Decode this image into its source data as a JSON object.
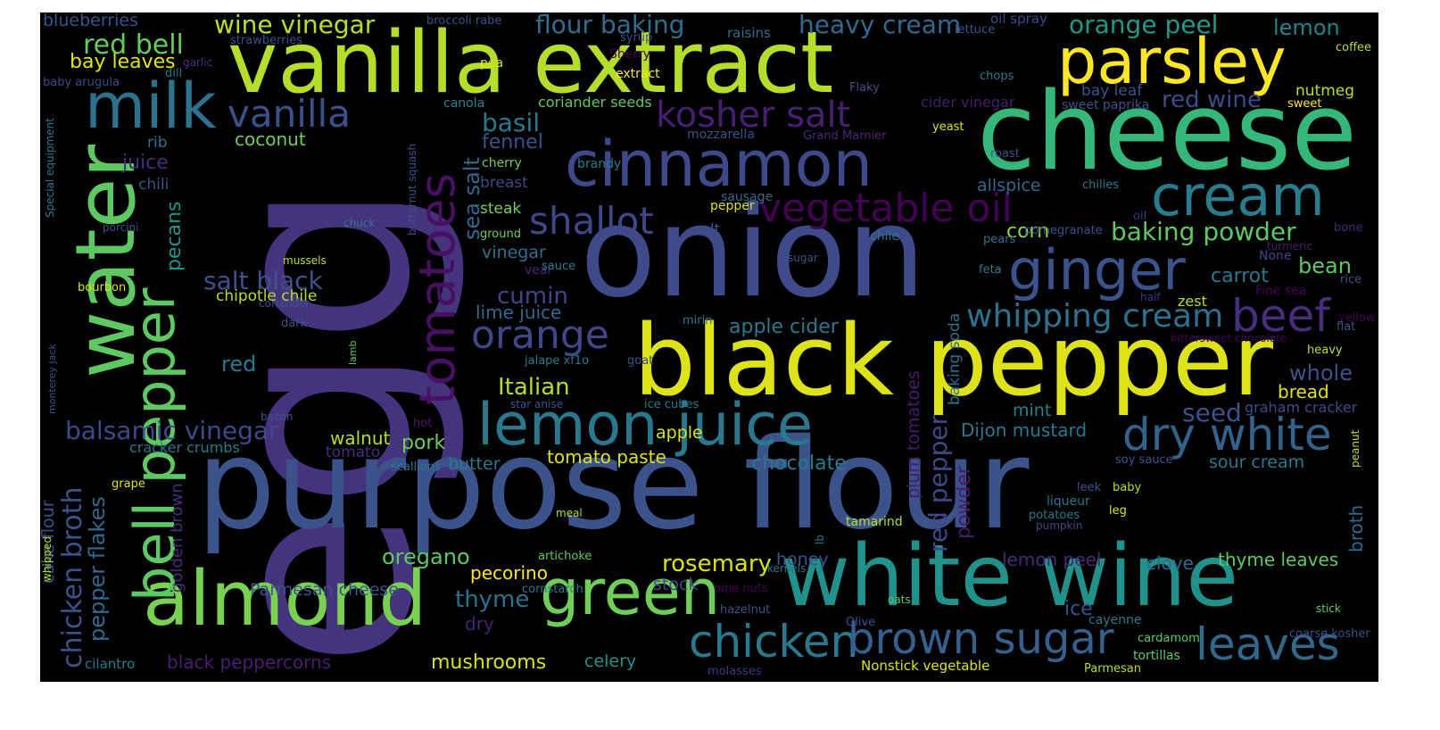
{
  "words": [
    {
      "text": "egg",
      "color": "#46337e"
    },
    {
      "text": "purpose flour",
      "color": "#3b528b"
    },
    {
      "text": "vanilla extract",
      "color": "#b5de2b"
    },
    {
      "text": "onion",
      "color": "#3e4a89"
    },
    {
      "text": "cheese",
      "color": "#35b779"
    },
    {
      "text": "black pepper",
      "color": "#dde318"
    },
    {
      "text": "white wine",
      "color": "#21918c"
    },
    {
      "text": "water",
      "color": "#5ec962"
    },
    {
      "text": "cinnamon",
      "color": "#3e4989"
    },
    {
      "text": "parsley",
      "color": "#fde725"
    },
    {
      "text": "almond",
      "color": "#7ad151"
    },
    {
      "text": "lemon juice",
      "color": "#2a788e"
    },
    {
      "text": "milk",
      "color": "#2c728e"
    },
    {
      "text": "green",
      "color": "#6ece58"
    },
    {
      "text": "bell pepper",
      "color": "#5ec962"
    },
    {
      "text": "tomatoes",
      "color": "#471063"
    },
    {
      "text": "cream",
      "color": "#287c8e"
    },
    {
      "text": "ginger",
      "color": "#3b528b"
    },
    {
      "text": "vanilla",
      "color": "#3b518b"
    },
    {
      "text": "kosher salt",
      "color": "#481f70"
    },
    {
      "text": "vegetable oil",
      "color": "#440154"
    },
    {
      "text": "shallot",
      "color": "#3f4788"
    },
    {
      "text": "chicken",
      "color": "#2a788e"
    },
    {
      "text": "brown sugar",
      "color": "#34608d"
    },
    {
      "text": "leaves",
      "color": "#31688e"
    },
    {
      "text": "dry white",
      "color": "#33638d"
    },
    {
      "text": "beef",
      "color": "#472d7b"
    },
    {
      "text": "orange",
      "color": "#3f4788"
    },
    {
      "text": "whipping cream",
      "color": "#2c718e"
    },
    {
      "text": "red bell",
      "color": "#67cc5c"
    },
    {
      "text": "wine vinegar",
      "color": "#b8de29"
    },
    {
      "text": "flour baking",
      "color": "#2e6e8e"
    },
    {
      "text": "heavy cream",
      "color": "#306a8e"
    },
    {
      "text": "orange peel",
      "color": "#1f9a8a"
    },
    {
      "text": "lemon",
      "color": "#25838e"
    },
    {
      "text": "red wine",
      "color": "#3e4a89"
    },
    {
      "text": "bay leaves",
      "color": "#dfe318"
    },
    {
      "text": "blueberries",
      "color": "#3b528b"
    },
    {
      "text": "basil",
      "color": "#2a788e"
    },
    {
      "text": "sea salt",
      "color": "#31688e"
    },
    {
      "text": "fennel",
      "color": "#3b528b"
    },
    {
      "text": "coconut",
      "color": "#6ece58"
    },
    {
      "text": "juice",
      "color": "#472c7a"
    },
    {
      "text": "chili",
      "color": "#3b528b"
    },
    {
      "text": "rib",
      "color": "#2c728e"
    },
    {
      "text": "pecans",
      "color": "#1f968b"
    },
    {
      "text": "baking powder",
      "color": "#5ec962"
    },
    {
      "text": "corn",
      "color": "#8fd744"
    },
    {
      "text": "allspice",
      "color": "#31688e"
    },
    {
      "text": "salt black",
      "color": "#3b528b"
    },
    {
      "text": "cumin",
      "color": "#414487"
    },
    {
      "text": "lime juice",
      "color": "#31688e"
    },
    {
      "text": "vinegar",
      "color": "#2c718e"
    },
    {
      "text": "steak",
      "color": "#7ad151"
    },
    {
      "text": "breast",
      "color": "#3f4788"
    },
    {
      "text": "Italian",
      "color": "#b5de2b"
    },
    {
      "text": "balsamic vinegar",
      "color": "#3e4989"
    },
    {
      "text": "chicken broth",
      "color": "#3b528b"
    },
    {
      "text": "pepper flakes",
      "color": "#31688e"
    },
    {
      "text": "walnut",
      "color": "#b8de29"
    },
    {
      "text": "pork",
      "color": "#6ece58"
    },
    {
      "text": "red",
      "color": "#2a788e"
    },
    {
      "text": "apple cider",
      "color": "#2a788e"
    },
    {
      "text": "carrot",
      "color": "#2a788e"
    },
    {
      "text": "bean",
      "color": "#5ec962"
    },
    {
      "text": "whole",
      "color": "#3b528b"
    },
    {
      "text": "bread",
      "color": "#dde318"
    },
    {
      "text": "seed",
      "color": "#3b528b"
    },
    {
      "text": "mint",
      "color": "#26828e"
    },
    {
      "text": "Dijon mustard",
      "color": "#2a788e"
    },
    {
      "text": "chocolate",
      "color": "#2a788e"
    },
    {
      "text": "tomato paste",
      "color": "#dde318"
    },
    {
      "text": "apple",
      "color": "#d8e219"
    },
    {
      "text": "butter",
      "color": "#2a788e"
    },
    {
      "text": "oregano",
      "color": "#5ec962"
    },
    {
      "text": "pecorino",
      "color": "#fde725"
    },
    {
      "text": "thyme",
      "color": "#2c728e"
    },
    {
      "text": "rosemary",
      "color": "#d8e219"
    },
    {
      "text": "honey",
      "color": "#3b528b"
    },
    {
      "text": "stock",
      "color": "#3e4989"
    },
    {
      "text": "mushrooms",
      "color": "#d8e219"
    },
    {
      "text": "celery",
      "color": "#21918c"
    },
    {
      "text": "Parmesan cheese",
      "color": "#3b528b"
    },
    {
      "text": "black peppercorns",
      "color": "#481f70"
    },
    {
      "text": "red pepper",
      "color": "#3f4788"
    },
    {
      "text": "powder",
      "color": "#481a6c"
    },
    {
      "text": "plum tomatoes",
      "color": "#481a6c"
    },
    {
      "text": "baking soda",
      "color": "#2d708e"
    },
    {
      "text": "lemon peel",
      "color": "#482878"
    },
    {
      "text": "clove",
      "color": "#31688e"
    },
    {
      "text": "thyme leaves",
      "color": "#5ec962"
    },
    {
      "text": "sour cream",
      "color": "#2a788e"
    },
    {
      "text": "broth",
      "color": "#31688e"
    },
    {
      "text": "ice",
      "color": "#3b528b"
    },
    {
      "text": "graham cracker",
      "color": "#3e4989"
    },
    {
      "text": "dry",
      "color": "#482475"
    },
    {
      "text": "cake flour",
      "color": "#3b528b"
    },
    {
      "text": "golden brown",
      "color": "#472c7a"
    },
    {
      "text": "cracker crumbs",
      "color": "#2a788e"
    },
    {
      "text": "tomato",
      "color": "#472d7b"
    },
    {
      "text": "chipotle chile",
      "color": "#b8de29"
    },
    {
      "text": "bay leaf",
      "color": "#3b528b"
    },
    {
      "text": "nutmeg",
      "color": "#b5de2b"
    },
    {
      "text": "strawberries",
      "color": "#3b528b"
    },
    {
      "text": "broccoli rabe",
      "color": "#3b528b"
    },
    {
      "text": "syrup",
      "color": "#3b528b"
    },
    {
      "text": "Sherry",
      "color": "#440154"
    },
    {
      "text": "extract",
      "color": "#fde725"
    },
    {
      "text": "raisins",
      "color": "#2c728e"
    },
    {
      "text": "lettuce",
      "color": "#3b528b"
    },
    {
      "text": "oil spray",
      "color": "#3e4989"
    },
    {
      "text": "coffee",
      "color": "#b5de2b"
    },
    {
      "text": "pea",
      "color": "#dde318"
    },
    {
      "text": "canola",
      "color": "#26828e"
    },
    {
      "text": "coriander seeds",
      "color": "#5ec962"
    },
    {
      "text": "cider vinegar",
      "color": "#481a6c"
    },
    {
      "text": "sweet paprika",
      "color": "#3b528b"
    },
    {
      "text": "sweet",
      "color": "#fde725"
    },
    {
      "text": "chops",
      "color": "#2a788e"
    },
    {
      "text": "Flaky",
      "color": "#3b528b"
    },
    {
      "text": "yeast",
      "color": "#dde318"
    },
    {
      "text": "roast",
      "color": "#3b528b"
    },
    {
      "text": "chilies",
      "color": "#2a788e"
    },
    {
      "text": "mozzarella",
      "color": "#3b528b"
    },
    {
      "text": "Grand Marnier",
      "color": "#482878"
    },
    {
      "text": "cherry",
      "color": "#6ece58"
    },
    {
      "text": "brandy",
      "color": "#2a788e"
    },
    {
      "text": "garlic",
      "color": "#46337e"
    },
    {
      "text": "dill",
      "color": "#2c728e"
    },
    {
      "text": "baby arugula",
      "color": "#3e4989"
    },
    {
      "text": "Special equipment",
      "color": "#2a788e"
    },
    {
      "text": "butternut squash",
      "color": "#3b528b"
    },
    {
      "text": "sausage",
      "color": "#31688e"
    },
    {
      "text": "pepper",
      "color": "#dde318"
    },
    {
      "text": "salt",
      "color": "#3b528b"
    },
    {
      "text": "chuck",
      "color": "#2a788e"
    },
    {
      "text": "porcini",
      "color": "#3b528b"
    },
    {
      "text": "ground",
      "color": "#6ece58"
    },
    {
      "text": "chile",
      "color": "#2a788e"
    },
    {
      "text": "pomegranate",
      "color": "#3b528b"
    },
    {
      "text": "pears",
      "color": "#2c728e"
    },
    {
      "text": "oil",
      "color": "#46337e"
    },
    {
      "text": "bone",
      "color": "#482878"
    },
    {
      "text": "turmeric",
      "color": "#481f70"
    },
    {
      "text": "mussels",
      "color": "#b8de29"
    },
    {
      "text": "veal",
      "color": "#482475"
    },
    {
      "text": "sauce",
      "color": "#2a788e"
    },
    {
      "text": "sugar",
      "color": "#3b528b"
    },
    {
      "text": "feta",
      "color": "#2a788e"
    },
    {
      "text": "None",
      "color": "#3e4989"
    },
    {
      "text": "rice",
      "color": "#3b528b"
    },
    {
      "text": "Fine sea",
      "color": "#440154"
    },
    {
      "text": "half",
      "color": "#46337e"
    },
    {
      "text": "zest",
      "color": "#b5de2b"
    },
    {
      "text": "yellow",
      "color": "#440154"
    },
    {
      "text": "flat",
      "color": "#3b528b"
    },
    {
      "text": "bittersweet chocolate",
      "color": "#440154"
    },
    {
      "text": "heavy",
      "color": "#b5de2b"
    },
    {
      "text": "bourbon",
      "color": "#dde318"
    },
    {
      "text": "coriander",
      "color": "#3b528b"
    },
    {
      "text": "dark",
      "color": "#3b528b"
    },
    {
      "text": "mirin",
      "color": "#2a788e"
    },
    {
      "text": "lamb",
      "color": "#5ec962"
    },
    {
      "text": "monterey jack",
      "color": "#3b528b"
    },
    {
      "text": "goat",
      "color": "#3b528b"
    },
    {
      "text": "jalape xf1o",
      "color": "#2a788e"
    },
    {
      "text": "star anise",
      "color": "#3b528b"
    },
    {
      "text": "ice cubes",
      "color": "#2a788e"
    },
    {
      "text": "bacon",
      "color": "#3b528b"
    },
    {
      "text": "hot",
      "color": "#481a6c"
    },
    {
      "text": "scallions",
      "color": "#2a788e"
    },
    {
      "text": "grape",
      "color": "#dde318"
    },
    {
      "text": "whipped",
      "color": "#b5de2b"
    },
    {
      "text": "soy sauce",
      "color": "#3b528b"
    },
    {
      "text": "peanut",
      "color": "#b5de2b"
    },
    {
      "text": "leek",
      "color": "#3b528b"
    },
    {
      "text": "liqueur",
      "color": "#2c728e"
    },
    {
      "text": "potatoes",
      "color": "#2a788e"
    },
    {
      "text": "pumpkin",
      "color": "#3e4989"
    },
    {
      "text": "baby",
      "color": "#b5de2b"
    },
    {
      "text": "leg",
      "color": "#dde318"
    },
    {
      "text": "tamarind",
      "color": "#b8de29"
    },
    {
      "text": "lb",
      "color": "#2a788e"
    },
    {
      "text": "meal",
      "color": "#b5de2b"
    },
    {
      "text": "artichoke",
      "color": "#5ec962"
    },
    {
      "text": "cornstarch",
      "color": "#2a788e"
    },
    {
      "text": "pine nuts",
      "color": "#440154"
    },
    {
      "text": "hazelnut",
      "color": "#3b528b"
    },
    {
      "text": "kernels",
      "color": "#2a788e"
    },
    {
      "text": "oats",
      "color": "#5ec962"
    },
    {
      "text": "Olive",
      "color": "#3b528b"
    },
    {
      "text": "molasses",
      "color": "#46337e"
    },
    {
      "text": "cayenne",
      "color": "#2a788e"
    },
    {
      "text": "stick",
      "color": "#5ec962"
    },
    {
      "text": "cardamom",
      "color": "#5ec962"
    },
    {
      "text": "coarse kosher",
      "color": "#3b528b"
    },
    {
      "text": "tortillas",
      "color": "#5ec962"
    },
    {
      "text": "Parmesan",
      "color": "#b5de2b"
    },
    {
      "text": "Nonstick vegetable",
      "color": "#dde318"
    },
    {
      "text": "cilantro",
      "color": "#2a788e"
    }
  ]
}
